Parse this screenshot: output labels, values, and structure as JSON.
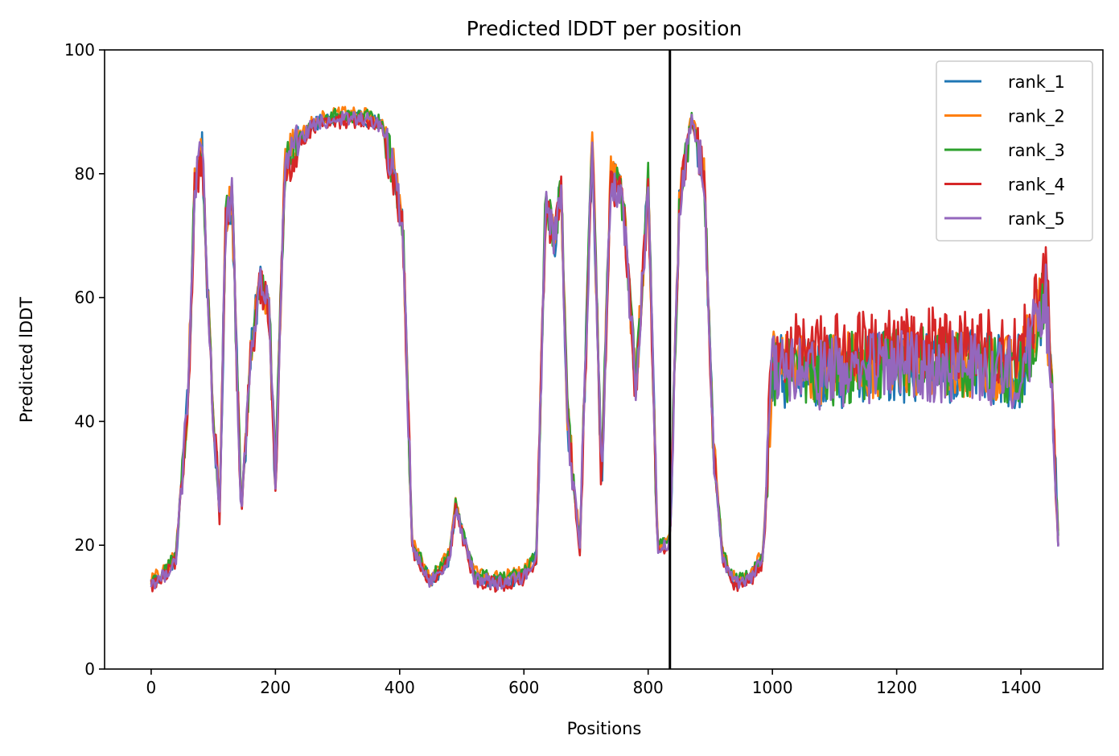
{
  "chart_data": {
    "type": "line",
    "title": "Predicted lDDT per position",
    "xlabel": "Positions",
    "ylabel": "Predicted lDDT",
    "xlim": [
      -75,
      1532
    ],
    "ylim": [
      0,
      100
    ],
    "xticks": [
      0,
      200,
      400,
      600,
      800,
      1000,
      1200,
      1400
    ],
    "yticks": [
      0,
      20,
      40,
      60,
      80,
      100
    ],
    "grid": false,
    "legend_position": "top-right",
    "vertical_line_x": 835,
    "series": [
      {
        "name": "rank_1",
        "color": "#1f77b4",
        "offset": 0.0
      },
      {
        "name": "rank_2",
        "color": "#ff7f0e",
        "offset": 0.6
      },
      {
        "name": "rank_3",
        "color": "#2ca02c",
        "offset": 0.4
      },
      {
        "name": "rank_4",
        "color": "#d62728",
        "offset": -0.5
      },
      {
        "name": "rank_5",
        "color": "#9467bd",
        "offset": -0.1
      }
    ],
    "profile_x": [
      0,
      20,
      40,
      60,
      70,
      82,
      95,
      110,
      120,
      130,
      145,
      160,
      175,
      190,
      200,
      215,
      230,
      260,
      300,
      340,
      370,
      390,
      405,
      420,
      450,
      480,
      490,
      520,
      560,
      600,
      620,
      635,
      650,
      660,
      670,
      690,
      710,
      725,
      740,
      760,
      780,
      800,
      815,
      835,
      850,
      870,
      890,
      905,
      920,
      940,
      965,
      985,
      1000,
      1100,
      1200,
      1300,
      1400,
      1440,
      1450,
      1460
    ],
    "profile_y": [
      14,
      15,
      18,
      45,
      78,
      84,
      50,
      25,
      72,
      76,
      25,
      50,
      63,
      58,
      30,
      80,
      84,
      88,
      89,
      89,
      88,
      80,
      72,
      20,
      14,
      18,
      26,
      15,
      14,
      15,
      18,
      75,
      70,
      78,
      40,
      20,
      85,
      30,
      80,
      75,
      45,
      78,
      20,
      20,
      75,
      89,
      80,
      35,
      18,
      14,
      15,
      18,
      48,
      48,
      49,
      49,
      48,
      60,
      45,
      21
    ]
  }
}
